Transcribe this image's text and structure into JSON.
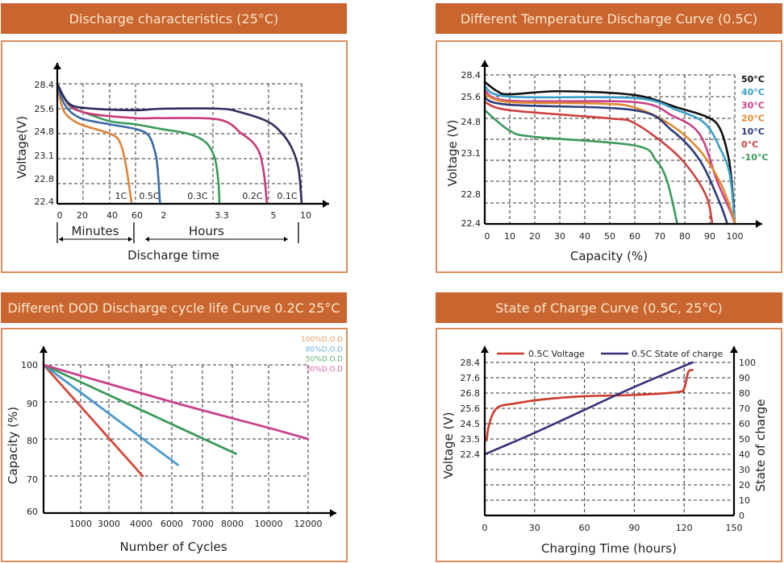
{
  "colors": {
    "header_bg": "#c9652f",
    "header_text": "#fbe6cc",
    "panel_border": "#dc8d5e"
  },
  "chart_data": [
    {
      "type": "line",
      "title": "Discharge characteristics (25°C)",
      "xlabel": "Discharge time",
      "ylabel": "Voltage(V)",
      "x_groups": [
        "Minutes",
        "Hours"
      ],
      "x_ticks": [
        "0",
        "20",
        "40",
        "60",
        "2",
        "3.3",
        "5",
        "10"
      ],
      "y_ticks": [
        "28.4",
        "25.6",
        "24.8",
        "23.1",
        "22.8",
        "22.4"
      ],
      "grid": true,
      "series": [
        {
          "name": "1C",
          "color": "#e0843a",
          "points": [
            [
              0,
              28.4
            ],
            [
              0.05,
              26.2
            ],
            [
              0.12,
              25.4
            ],
            [
              0.3,
              25.1
            ],
            [
              0.67,
              24.8
            ],
            [
              0.8,
              24.2
            ],
            [
              0.88,
              23.0
            ],
            [
              0.95,
              22.4
            ]
          ]
        },
        {
          "name": "0.5C",
          "color": "#3a6aa8",
          "points": [
            [
              0,
              28.4
            ],
            [
              0.1,
              26.0
            ],
            [
              0.3,
              25.3
            ],
            [
              0.67,
              25.1
            ],
            [
              1,
              24.95
            ],
            [
              1.5,
              24.7
            ],
            [
              1.75,
              23.6
            ],
            [
              1.85,
              23.0
            ],
            [
              1.95,
              22.4
            ]
          ]
        },
        {
          "name": "0.3C",
          "color": "#3a9a5a",
          "points": [
            [
              0,
              28.4
            ],
            [
              0.15,
              26.0
            ],
            [
              0.33,
              25.5
            ],
            [
              0.67,
              25.2
            ],
            [
              1,
              25.1
            ],
            [
              2,
              24.95
            ],
            [
              2.6,
              24.8
            ],
            [
              3.0,
              24.2
            ],
            [
              3.2,
              23.1
            ],
            [
              3.28,
              22.8
            ],
            [
              3.3,
              22.4
            ]
          ]
        },
        {
          "name": "0.2C",
          "color": "#c83a78",
          "points": [
            [
              0,
              28.4
            ],
            [
              0.15,
              26.1
            ],
            [
              0.4,
              25.45
            ],
            [
              1,
              25.3
            ],
            [
              2,
              25.3
            ],
            [
              3.3,
              25.25
            ],
            [
              4.1,
              24.8
            ],
            [
              4.5,
              24.2
            ],
            [
              4.75,
              23.4
            ],
            [
              4.9,
              22.9
            ],
            [
              5,
              22.4
            ]
          ]
        },
        {
          "name": "0.1C",
          "color": "#2d2d5e",
          "points": [
            [
              0,
              28.4
            ],
            [
              0.15,
              26.2
            ],
            [
              0.4,
              25.65
            ],
            [
              1,
              25.55
            ],
            [
              2,
              25.6
            ],
            [
              3.3,
              25.6
            ],
            [
              4,
              25.5
            ],
            [
              5,
              25.2
            ],
            [
              7,
              24.85
            ],
            [
              8.5,
              23.9
            ],
            [
              9.5,
              23.0
            ],
            [
              9.9,
              22.6
            ],
            [
              10,
              22.4
            ]
          ]
        }
      ]
    },
    {
      "type": "line",
      "title": "Different Temperature Discharge Curve (0.5C)",
      "xlabel": "Capacity (%)",
      "ylabel": "Voltage (V)",
      "x_ticks": [
        "0",
        "10",
        "20",
        "30",
        "40",
        "50",
        "60",
        "70",
        "80",
        "90",
        "100"
      ],
      "y_ticks": [
        "28.4",
        "25.6",
        "24.8",
        "23.1",
        "22.8",
        "22.4"
      ],
      "xlim": [
        0,
        100
      ],
      "grid": true,
      "legend_position": "right",
      "series": [
        {
          "name": "50°C",
          "color": "#111111",
          "points": [
            [
              0,
              27.5
            ],
            [
              5,
              26.3
            ],
            [
              10,
              25.9
            ],
            [
              30,
              26.3
            ],
            [
              60,
              25.8
            ],
            [
              77,
              25.2
            ],
            [
              89,
              24.85
            ],
            [
              94,
              24.4
            ],
            [
              97.5,
              23.2
            ],
            [
              99,
              22.9
            ],
            [
              100,
              22.4
            ]
          ]
        },
        {
          "name": "40°C",
          "color": "#3aa0c8",
          "points": [
            [
              0,
              26.9
            ],
            [
              10,
              25.6
            ],
            [
              60,
              25.55
            ],
            [
              77,
              25.1
            ],
            [
              88,
              24.6
            ],
            [
              94,
              23.6
            ],
            [
              98,
              23.0
            ],
            [
              100,
              22.4
            ]
          ]
        },
        {
          "name": "30°C",
          "color": "#c8408a",
          "points": [
            [
              0,
              26.4
            ],
            [
              10,
              25.45
            ],
            [
              60,
              25.4
            ],
            [
              75,
              24.9
            ],
            [
              86,
              24.15
            ],
            [
              93,
              22.95
            ],
            [
              98.6,
              22.6
            ],
            [
              100,
              22.4
            ]
          ]
        },
        {
          "name": "20°C",
          "color": "#e08a30",
          "points": [
            [
              0,
              25.9
            ],
            [
              10,
              25.4
            ],
            [
              45,
              25.35
            ],
            [
              60,
              25.2
            ],
            [
              75,
              24.5
            ],
            [
              86,
              23.5
            ],
            [
              94,
              22.95
            ],
            [
              99,
              22.6
            ],
            [
              100,
              22.4
            ]
          ]
        },
        {
          "name": "10°C",
          "color": "#2e3a7a",
          "points": [
            [
              0,
              25.55
            ],
            [
              10,
              25.3
            ],
            [
              60,
              25.1
            ],
            [
              75,
              24.3
            ],
            [
              86,
              23.1
            ],
            [
              94,
              22.8
            ],
            [
              97,
              22.4
            ]
          ]
        },
        {
          "name": "0°C",
          "color": "#d04040",
          "points": [
            [
              0,
              25.4
            ],
            [
              10,
              25.1
            ],
            [
              50,
              24.8
            ],
            [
              60,
              24.6
            ],
            [
              75,
              23.5
            ],
            [
              83.5,
              23.0
            ],
            [
              89,
              22.83
            ],
            [
              91,
              22.4
            ]
          ]
        },
        {
          "name": "-10°C",
          "color": "#3a9a5a",
          "points": [
            [
              0,
              25.1
            ],
            [
              10,
              24.3
            ],
            [
              20,
              24.05
            ],
            [
              60,
              23.7
            ],
            [
              68.5,
              23.1
            ],
            [
              73,
              22.95
            ],
            [
              77,
              22.4
            ]
          ]
        }
      ]
    },
    {
      "type": "line",
      "title": "Different DOD Discharge cycle life Curve 0.2C 25°C",
      "xlabel": "Number of Cycles",
      "ylabel": "Capacity (%)",
      "x_ticks": [
        "1000",
        "3000",
        "4000",
        "6000",
        "7000",
        "8000",
        "10000",
        "12000"
      ],
      "y_ticks": [
        "100",
        "90",
        "80",
        "70",
        "60"
      ],
      "ylim": [
        60,
        100
      ],
      "grid": true,
      "legend_position": "top-right",
      "series": [
        {
          "name": "100%D.O.D",
          "color": "#e0843a",
          "line_color": "#d9473a",
          "points": [
            [
              0,
              100
            ],
            [
              4100,
              70
            ]
          ]
        },
        {
          "name": "80%D.O.D",
          "color": "#4a9ad0",
          "line_color": "#4a9ad0",
          "points": [
            [
              0,
              100
            ],
            [
              6200,
              73
            ]
          ]
        },
        {
          "name": "50%D.O.D",
          "color": "#3a9a5a",
          "line_color": "#3a9a5a",
          "points": [
            [
              0,
              100
            ],
            [
              8200,
              76
            ]
          ]
        },
        {
          "name": "30%D.O.D",
          "color": "#c8408a",
          "line_color": "#c8408a",
          "points": [
            [
              0,
              100
            ],
            [
              6000,
              90
            ],
            [
              10000,
              83
            ],
            [
              12000,
              80
            ]
          ]
        }
      ]
    },
    {
      "type": "line",
      "title": "State of Charge Curve (0.5C, 25°C)",
      "xlabel": "Charging Time (hours)",
      "ylabel": "Voltage (V)",
      "y2label": "State of charge",
      "x_ticks": [
        "0",
        "30",
        "60",
        "90",
        "120",
        "150"
      ],
      "xlim": [
        0,
        150
      ],
      "y_ticks": [
        "28.4",
        "27.6",
        "26.8",
        "25.6",
        "24.5",
        "23.5",
        "22.4"
      ],
      "y2_ticks": [
        "100",
        "90",
        "80",
        "70",
        "60",
        "50",
        "40",
        "30",
        "20",
        "10",
        "0"
      ],
      "y2lim": [
        0,
        100
      ],
      "grid": true,
      "legend_position": "top",
      "series": [
        {
          "name": "0.5C Voltage",
          "color": "#cc3a2a",
          "axis": "left",
          "points": [
            [
              1.1,
              23.4
            ],
            [
              2.75,
              24.5
            ],
            [
              7.6,
              25.65
            ],
            [
              19,
              26.0
            ],
            [
              35,
              26.3
            ],
            [
              60,
              26.55
            ],
            [
              90,
              26.65
            ],
            [
              116,
              26.85
            ],
            [
              120,
              27.05
            ],
            [
              122.5,
              27.9
            ],
            [
              125,
              28.0
            ]
          ]
        },
        {
          "name": "0.5C State of charge",
          "color": "#35307a",
          "axis": "right",
          "points": [
            [
              0,
              40
            ],
            [
              30,
              54
            ],
            [
              60,
              69
            ],
            [
              90,
              84
            ],
            [
              125,
              100
            ]
          ]
        }
      ]
    }
  ]
}
